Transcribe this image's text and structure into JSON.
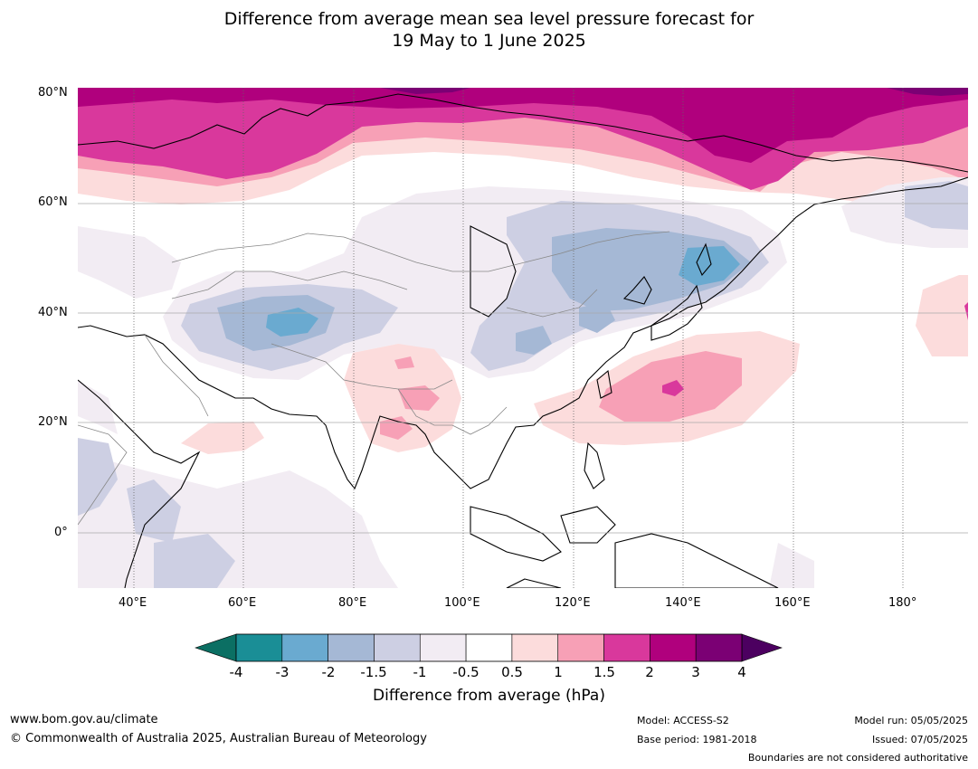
{
  "title": {
    "line1": "Difference from average mean sea level pressure forecast for",
    "line2": "19 May to 1 June 2025"
  },
  "lat_labels": [
    "80°N",
    "60°N",
    "40°N",
    "20°N",
    "0°"
  ],
  "lon_labels": [
    "40°E",
    "60°E",
    "80°E",
    "100°E",
    "120°E",
    "140°E",
    "160°E",
    "180°"
  ],
  "colorbar": {
    "ticks": [
      "-4",
      "-3",
      "-2",
      "-1.5",
      "-1",
      "-0.5",
      "0.5",
      "1",
      "1.5",
      "2",
      "3",
      "4"
    ],
    "colors": [
      "#1a8e96",
      "#6aaad0",
      "#a5b8d5",
      "#cdcfe3",
      "#f2ecf3",
      "#ffffff",
      "#fcdcdc",
      "#f7a0b6",
      "#d9389c",
      "#b0007d",
      "#7b0074"
    ],
    "under_color": "#0b6f63",
    "over_color": "#4c0060",
    "label": "Difference from average (hPa)"
  },
  "footer": {
    "url": "www.bom.gov.au/climate",
    "copyright": "© Commonwealth of Australia 2025, Australian Bureau of Meteorology",
    "model": "Model: ACCESS-S2",
    "base_period": "Base period: 1981-2018",
    "model_run": "Model run: 05/05/2025",
    "issued": "Issued: 07/05/2025",
    "disclaimer": "Boundaries are not considered authoritative"
  }
}
